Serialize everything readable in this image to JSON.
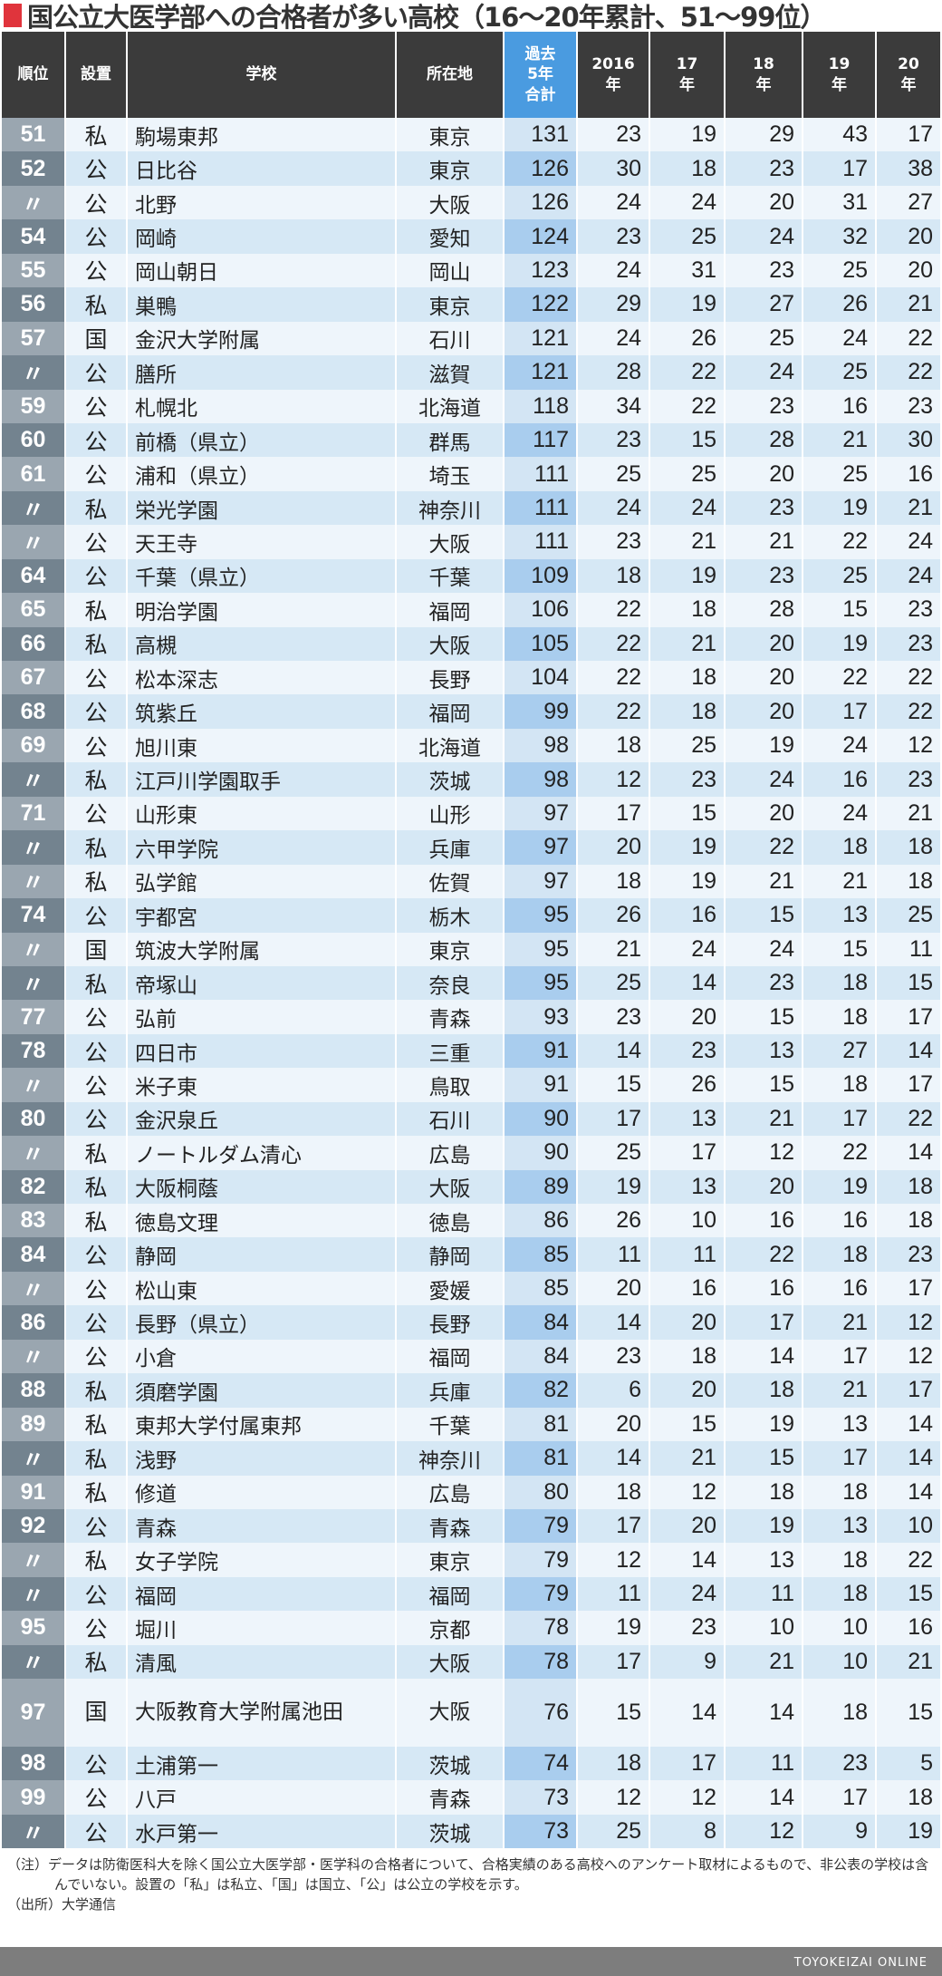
{
  "title": "国公立大医学部への合格者が多い高校（16～20年累計、51～99位）",
  "headers": [
    "順位",
    "設置",
    "学校",
    "所在地",
    "過去\n5年\n合計",
    "2016\n年",
    "17\n年",
    "18\n年",
    "19\n年",
    "20\n年"
  ],
  "colors": {
    "title_mark": "#e0343c",
    "header": "#3b3b3b",
    "total_header": "#4a9be0"
  },
  "rows": [
    [
      "51",
      "私",
      "駒場東邦",
      "東京",
      "131",
      "23",
      "19",
      "29",
      "43",
      "17"
    ],
    [
      "52",
      "公",
      "日比谷",
      "東京",
      "126",
      "30",
      "18",
      "23",
      "17",
      "38"
    ],
    [
      "〃",
      "公",
      "北野",
      "大阪",
      "126",
      "24",
      "24",
      "20",
      "31",
      "27"
    ],
    [
      "54",
      "公",
      "岡崎",
      "愛知",
      "124",
      "23",
      "25",
      "24",
      "32",
      "20"
    ],
    [
      "55",
      "公",
      "岡山朝日",
      "岡山",
      "123",
      "24",
      "31",
      "23",
      "25",
      "20"
    ],
    [
      "56",
      "私",
      "巣鴨",
      "東京",
      "122",
      "29",
      "19",
      "27",
      "26",
      "21"
    ],
    [
      "57",
      "国",
      "金沢大学附属",
      "石川",
      "121",
      "24",
      "26",
      "25",
      "24",
      "22"
    ],
    [
      "〃",
      "公",
      "膳所",
      "滋賀",
      "121",
      "28",
      "22",
      "24",
      "25",
      "22"
    ],
    [
      "59",
      "公",
      "札幌北",
      "北海道",
      "118",
      "34",
      "22",
      "23",
      "16",
      "23"
    ],
    [
      "60",
      "公",
      "前橋（県立）",
      "群馬",
      "117",
      "23",
      "15",
      "28",
      "21",
      "30"
    ],
    [
      "61",
      "公",
      "浦和（県立）",
      "埼玉",
      "111",
      "25",
      "25",
      "20",
      "25",
      "16"
    ],
    [
      "〃",
      "私",
      "栄光学園",
      "神奈川",
      "111",
      "24",
      "24",
      "23",
      "19",
      "21"
    ],
    [
      "〃",
      "公",
      "天王寺",
      "大阪",
      "111",
      "23",
      "21",
      "21",
      "22",
      "24"
    ],
    [
      "64",
      "公",
      "千葉（県立）",
      "千葉",
      "109",
      "18",
      "19",
      "23",
      "25",
      "24"
    ],
    [
      "65",
      "私",
      "明治学園",
      "福岡",
      "106",
      "22",
      "18",
      "28",
      "15",
      "23"
    ],
    [
      "66",
      "私",
      "高槻",
      "大阪",
      "105",
      "22",
      "21",
      "20",
      "19",
      "23"
    ],
    [
      "67",
      "公",
      "松本深志",
      "長野",
      "104",
      "22",
      "18",
      "20",
      "22",
      "22"
    ],
    [
      "68",
      "公",
      "筑紫丘",
      "福岡",
      "99",
      "22",
      "18",
      "20",
      "17",
      "22"
    ],
    [
      "69",
      "公",
      "旭川東",
      "北海道",
      "98",
      "18",
      "25",
      "19",
      "24",
      "12"
    ],
    [
      "〃",
      "私",
      "江戸川学園取手",
      "茨城",
      "98",
      "12",
      "23",
      "24",
      "16",
      "23"
    ],
    [
      "71",
      "公",
      "山形東",
      "山形",
      "97",
      "17",
      "15",
      "20",
      "24",
      "21"
    ],
    [
      "〃",
      "私",
      "六甲学院",
      "兵庫",
      "97",
      "20",
      "19",
      "22",
      "18",
      "18"
    ],
    [
      "〃",
      "私",
      "弘学館",
      "佐賀",
      "97",
      "18",
      "19",
      "21",
      "21",
      "18"
    ],
    [
      "74",
      "公",
      "宇都宮",
      "栃木",
      "95",
      "26",
      "16",
      "15",
      "13",
      "25"
    ],
    [
      "〃",
      "国",
      "筑波大学附属",
      "東京",
      "95",
      "21",
      "24",
      "24",
      "15",
      "11"
    ],
    [
      "〃",
      "私",
      "帝塚山",
      "奈良",
      "95",
      "25",
      "14",
      "23",
      "18",
      "15"
    ],
    [
      "77",
      "公",
      "弘前",
      "青森",
      "93",
      "23",
      "20",
      "15",
      "18",
      "17"
    ],
    [
      "78",
      "公",
      "四日市",
      "三重",
      "91",
      "14",
      "23",
      "13",
      "27",
      "14"
    ],
    [
      "〃",
      "公",
      "米子東",
      "鳥取",
      "91",
      "15",
      "26",
      "15",
      "18",
      "17"
    ],
    [
      "80",
      "公",
      "金沢泉丘",
      "石川",
      "90",
      "17",
      "13",
      "21",
      "17",
      "22"
    ],
    [
      "〃",
      "私",
      "ノートルダム清心",
      "広島",
      "90",
      "25",
      "17",
      "12",
      "22",
      "14"
    ],
    [
      "82",
      "私",
      "大阪桐蔭",
      "大阪",
      "89",
      "19",
      "13",
      "20",
      "19",
      "18"
    ],
    [
      "83",
      "私",
      "徳島文理",
      "徳島",
      "86",
      "26",
      "10",
      "16",
      "16",
      "18"
    ],
    [
      "84",
      "公",
      "静岡",
      "静岡",
      "85",
      "11",
      "11",
      "22",
      "18",
      "23"
    ],
    [
      "〃",
      "公",
      "松山東",
      "愛媛",
      "85",
      "20",
      "16",
      "16",
      "16",
      "17"
    ],
    [
      "86",
      "公",
      "長野（県立）",
      "長野",
      "84",
      "14",
      "20",
      "17",
      "21",
      "12"
    ],
    [
      "〃",
      "公",
      "小倉",
      "福岡",
      "84",
      "23",
      "18",
      "14",
      "17",
      "12"
    ],
    [
      "88",
      "私",
      "須磨学園",
      "兵庫",
      "82",
      "6",
      "20",
      "18",
      "21",
      "17"
    ],
    [
      "89",
      "私",
      "東邦大学付属東邦",
      "千葉",
      "81",
      "20",
      "15",
      "19",
      "13",
      "14"
    ],
    [
      "〃",
      "私",
      "浅野",
      "神奈川",
      "81",
      "14",
      "21",
      "15",
      "17",
      "14"
    ],
    [
      "91",
      "私",
      "修道",
      "広島",
      "80",
      "18",
      "12",
      "18",
      "18",
      "14"
    ],
    [
      "92",
      "公",
      "青森",
      "青森",
      "79",
      "17",
      "20",
      "19",
      "13",
      "10"
    ],
    [
      "〃",
      "私",
      "女子学院",
      "東京",
      "79",
      "12",
      "14",
      "13",
      "18",
      "22"
    ],
    [
      "〃",
      "公",
      "福岡",
      "福岡",
      "79",
      "11",
      "24",
      "11",
      "18",
      "15"
    ],
    [
      "95",
      "公",
      "堀川",
      "京都",
      "78",
      "19",
      "23",
      "10",
      "10",
      "16"
    ],
    [
      "〃",
      "私",
      "清風",
      "大阪",
      "78",
      "17",
      "9",
      "21",
      "10",
      "21"
    ],
    [
      "97",
      "国",
      "大阪教育大学附属池田",
      "大阪",
      "76",
      "15",
      "14",
      "14",
      "18",
      "15"
    ],
    [
      "98",
      "公",
      "土浦第一",
      "茨城",
      "74",
      "18",
      "17",
      "11",
      "23",
      "5"
    ],
    [
      "99",
      "公",
      "八戸",
      "青森",
      "73",
      "12",
      "12",
      "14",
      "17",
      "18"
    ],
    [
      "〃",
      "公",
      "水戸第一",
      "茨城",
      "73",
      "25",
      "8",
      "12",
      "9",
      "19"
    ]
  ],
  "notes": [
    "（注）データは防衛医科大を除く国公立大医学部・医学科の合格者について、合格実績のある高校へのアンケート取材によるもので、非公表の学校は含んでいない。設置の「私」は私立、「国」は国立、「公」は公立の学校を示す。",
    "（出所）大学通信"
  ],
  "footer": "TOYOKEIZAI ONLINE"
}
